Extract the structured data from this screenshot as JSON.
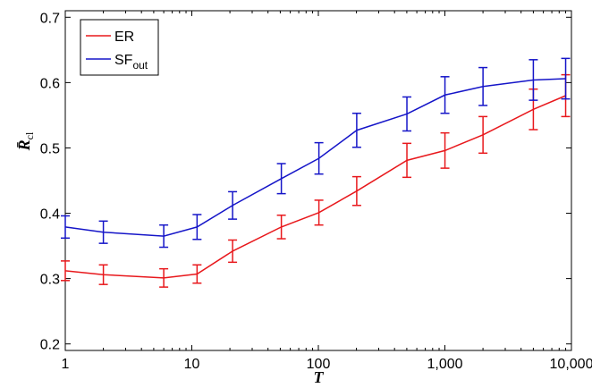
{
  "chart_data": {
    "type": "line",
    "x_scale": "log",
    "xlabel": "T",
    "ylabel": "R̄",
    "ylabel_sub": "cl",
    "xlim": [
      1,
      10000
    ],
    "ylim": [
      0.19,
      0.71
    ],
    "x_ticks": [
      1,
      10,
      100,
      1000,
      10000
    ],
    "x_tick_labels": [
      "1",
      "10",
      "100",
      "1,000",
      "10,000"
    ],
    "y_ticks": [
      0.2,
      0.3,
      0.4,
      0.5,
      0.6,
      0.7
    ],
    "y_tick_labels": [
      "0.2",
      "0.3",
      "0.4",
      "0.5",
      "0.6",
      "0.7"
    ],
    "grid": false,
    "legend_position": "top-left",
    "x": [
      1,
      2,
      6,
      11,
      21,
      51,
      101,
      201,
      501,
      1001,
      2001,
      5001,
      9001
    ],
    "series": [
      {
        "name": "ER",
        "name_sub": "",
        "color": "#e8181c",
        "values": [
          0.312,
          0.306,
          0.301,
          0.307,
          0.342,
          0.379,
          0.401,
          0.434,
          0.481,
          0.496,
          0.52,
          0.559,
          0.58
        ],
        "errors": [
          0.015,
          0.015,
          0.014,
          0.014,
          0.017,
          0.018,
          0.019,
          0.022,
          0.026,
          0.027,
          0.028,
          0.031,
          0.032
        ]
      },
      {
        "name": "SF",
        "name_sub": "out",
        "color": "#1515c8",
        "values": [
          0.379,
          0.371,
          0.365,
          0.379,
          0.412,
          0.453,
          0.484,
          0.527,
          0.552,
          0.581,
          0.594,
          0.604,
          0.606
        ],
        "errors": [
          0.017,
          0.017,
          0.017,
          0.019,
          0.021,
          0.023,
          0.024,
          0.026,
          0.026,
          0.028,
          0.029,
          0.031,
          0.031
        ]
      }
    ]
  }
}
